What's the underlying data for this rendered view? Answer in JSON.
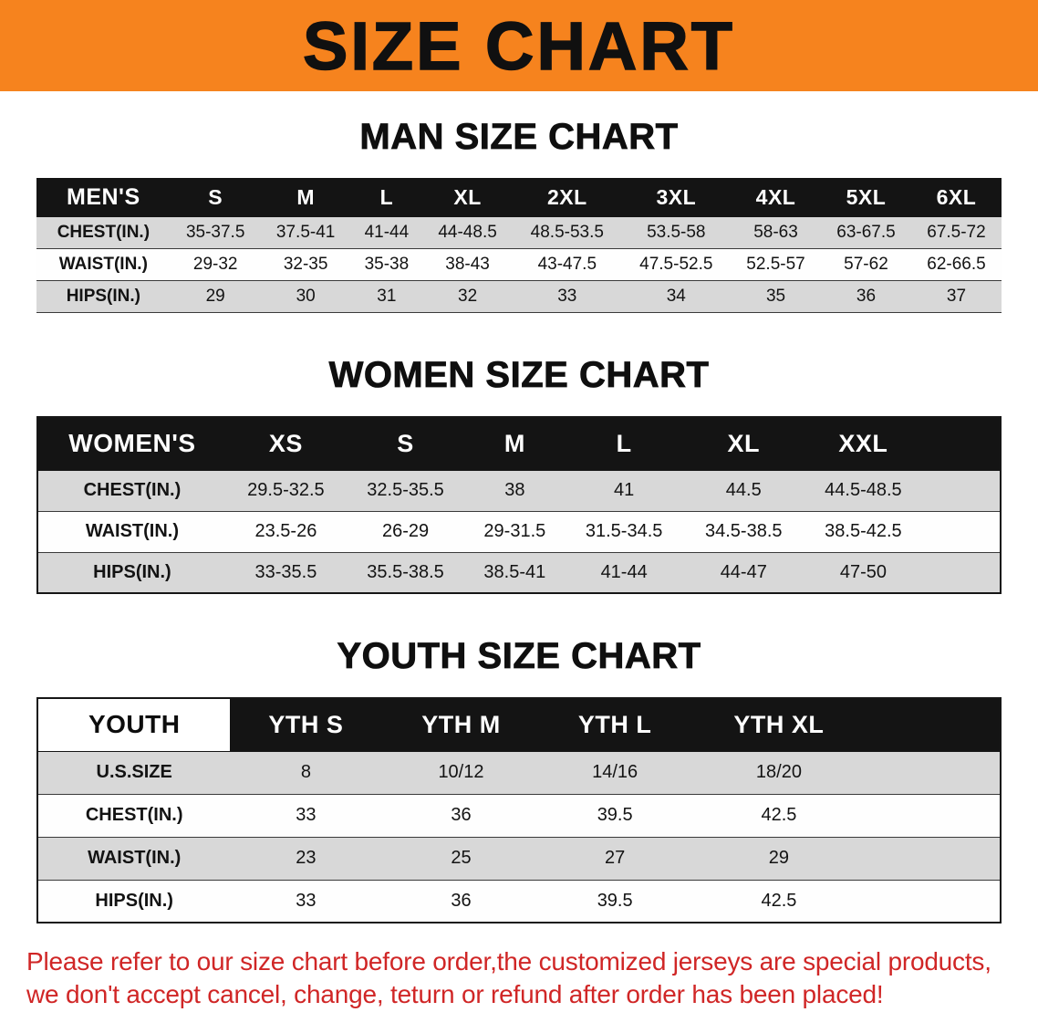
{
  "banner": {
    "title": "SIZE CHART"
  },
  "sections": {
    "men": {
      "heading": "MAN SIZE CHART",
      "table": {
        "header": [
          "MEN'S",
          "S",
          "M",
          "L",
          "XL",
          "2XL",
          "3XL",
          "4XL",
          "5XL",
          "6XL"
        ],
        "rows": [
          {
            "label": "CHEST(IN.)",
            "values": [
              "35-37.5",
              "37.5-41",
              "41-44",
              "44-48.5",
              "48.5-53.5",
              "53.5-58",
              "58-63",
              "63-67.5",
              "67.5-72"
            ]
          },
          {
            "label": "WAIST(IN.)",
            "values": [
              "29-32",
              "32-35",
              "35-38",
              "38-43",
              "43-47.5",
              "47.5-52.5",
              "52.5-57",
              "57-62",
              "62-66.5"
            ]
          },
          {
            "label": "HIPS(IN.)",
            "values": [
              "29",
              "30",
              "31",
              "32",
              "33",
              "34",
              "35",
              "36",
              "37"
            ]
          }
        ]
      }
    },
    "women": {
      "heading": "WOMEN SIZE CHART",
      "table": {
        "header": [
          "WOMEN'S",
          "XS",
          "S",
          "M",
          "L",
          "XL",
          "XXL"
        ],
        "rows": [
          {
            "label": "CHEST(IN.)",
            "values": [
              "29.5-32.5",
              "32.5-35.5",
              "38",
              "41",
              "44.5",
              "44.5-48.5"
            ]
          },
          {
            "label": "WAIST(IN.)",
            "values": [
              "23.5-26",
              "26-29",
              "29-31.5",
              "31.5-34.5",
              "34.5-38.5",
              "38.5-42.5"
            ]
          },
          {
            "label": "HIPS(IN.)",
            "values": [
              "33-35.5",
              "35.5-38.5",
              "38.5-41",
              "41-44",
              "44-47",
              "47-50"
            ]
          }
        ]
      }
    },
    "youth": {
      "heading": "YOUTH SIZE CHART",
      "table": {
        "header": [
          "YOUTH",
          "YTH S",
          "YTH M",
          "YTH L",
          "YTH XL"
        ],
        "rows": [
          {
            "label": "U.S.SIZE",
            "values": [
              "8",
              "10/12",
              "14/16",
              "18/20"
            ]
          },
          {
            "label": "CHEST(IN.)",
            "values": [
              "33",
              "36",
              "39.5",
              "42.5"
            ]
          },
          {
            "label": "WAIST(IN.)",
            "values": [
              "23",
              "25",
              "27",
              "29"
            ]
          },
          {
            "label": "HIPS(IN.)",
            "values": [
              "33",
              "36",
              "39.5",
              "42.5"
            ]
          }
        ]
      }
    }
  },
  "footer": {
    "lines": [
      "Please refer to our size chart before order,the customized jerseys are special products,",
      "we don't accept cancel, change, teturn or refund after order has been placed!"
    ]
  },
  "colors": {
    "banner_bg": "#f6831e",
    "header_bg": "#141414",
    "row_alt_bg": "#d8d8d8",
    "notice_red": "#d02626"
  }
}
